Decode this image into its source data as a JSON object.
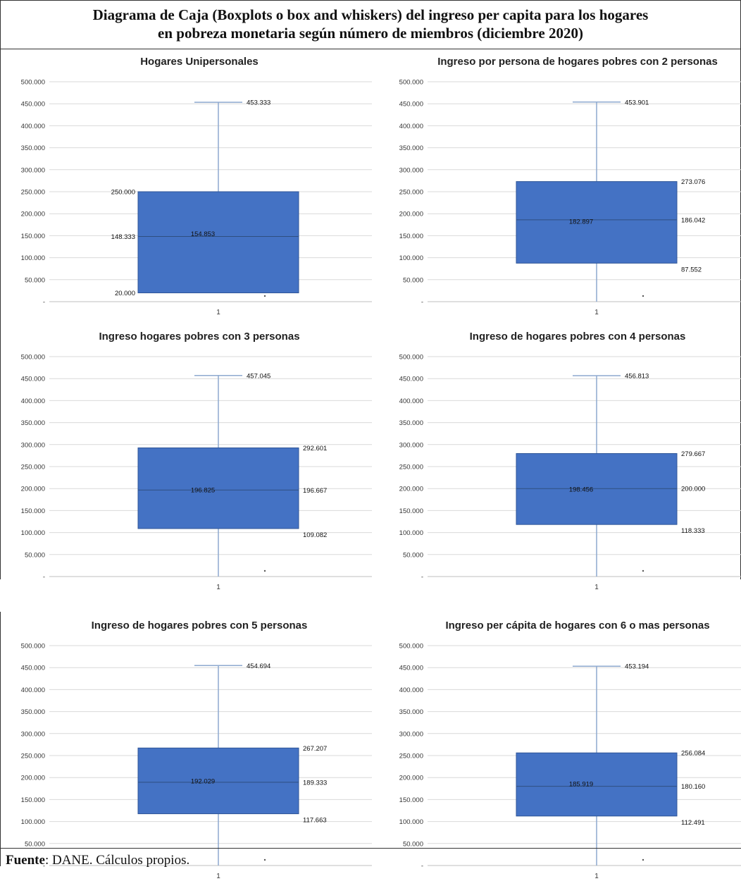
{
  "figure": {
    "title_line1": "Diagrama de Caja (Boxplots o box and whiskers) del ingreso per capita para los hogares",
    "title_line2": "en pobreza monetaria según número de miembros (diciembre 2020)",
    "source_label": "Fuente",
    "source_text": ": DANE. Cálculos propios."
  },
  "colors": {
    "box": "#4472c4",
    "whisker": "#8ea9cf",
    "grid": "#d9d9d9"
  },
  "chart_data": [
    {
      "type": "box",
      "title": "Hogares Unipersonales",
      "category": "1",
      "ylim": [
        0,
        500000
      ],
      "yticks": [
        "-",
        "50.000",
        "100.000",
        "150.000",
        "200.000",
        "250.000",
        "300.000",
        "350.000",
        "400.000",
        "450.000",
        "500.000"
      ],
      "min": 20000,
      "q1": 20000,
      "median": 148333,
      "mean": 154853,
      "q3": 250000,
      "max": 453333,
      "labels": {
        "max": "453.333",
        "q3": "250.000",
        "median": "148.333",
        "mean": "154.853",
        "q1": "20.000"
      },
      "label_side": "left"
    },
    {
      "type": "box",
      "title": "Ingreso por persona de hogares pobres con 2 personas",
      "category": "1",
      "ylim": [
        0,
        500000
      ],
      "yticks": [
        "-",
        "50.000",
        "100.000",
        "150.000",
        "200.000",
        "250.000",
        "300.000",
        "350.000",
        "400.000",
        "450.000",
        "500.000"
      ],
      "min": 0,
      "q1": 87552,
      "median": 186042,
      "mean": 182897,
      "q3": 273076,
      "max": 453901,
      "labels": {
        "max": "453.901",
        "q3": "273.076",
        "median": "186.042",
        "mean": "182.897",
        "q1": "87.552"
      },
      "label_side": "right"
    },
    {
      "type": "box",
      "title": "Ingreso hogares pobres con 3 personas",
      "category": "1",
      "ylim": [
        0,
        500000
      ],
      "yticks": [
        "-",
        "50.000",
        "100.000",
        "150.000",
        "200.000",
        "250.000",
        "300.000",
        "350.000",
        "400.000",
        "450.000",
        "500.000"
      ],
      "min": 0,
      "q1": 109082,
      "median": 196667,
      "mean": 196825,
      "q3": 292601,
      "max": 457045,
      "labels": {
        "max": "457.045",
        "q3": "292.601",
        "median": "196.667",
        "mean": "196.825",
        "q1": "109.082"
      },
      "label_side": "right"
    },
    {
      "type": "box",
      "title": "Ingreso de hogares pobres con 4 personas",
      "category": "1",
      "ylim": [
        0,
        500000
      ],
      "yticks": [
        "-",
        "50.000",
        "100.000",
        "150.000",
        "200.000",
        "250.000",
        "300.000",
        "350.000",
        "400.000",
        "450.000",
        "500.000"
      ],
      "min": 0,
      "q1": 118333,
      "median": 200000,
      "mean": 198456,
      "q3": 279667,
      "max": 456813,
      "labels": {
        "max": "456.813",
        "q3": "279.667",
        "median": "200.000",
        "mean": "198.456",
        "q1": "118.333"
      },
      "label_side": "right"
    },
    {
      "type": "box",
      "title": "Ingreso de hogares pobres con 5 personas",
      "category": "1",
      "ylim": [
        0,
        500000
      ],
      "yticks": [
        "-",
        "50.000",
        "100.000",
        "150.000",
        "200.000",
        "250.000",
        "300.000",
        "350.000",
        "400.000",
        "450.000",
        "500.000"
      ],
      "min": 0,
      "q1": 117663,
      "median": 189333,
      "mean": 192029,
      "q3": 267207,
      "max": 454694,
      "labels": {
        "max": "454.694",
        "q3": "267.207",
        "median": "189.333",
        "mean": "192.029",
        "q1": "117.663"
      },
      "label_side": "right"
    },
    {
      "type": "box",
      "title": "Ingreso per cápita de hogares con 6 o mas personas",
      "category": "1",
      "ylim": [
        0,
        500000
      ],
      "yticks": [
        "-",
        "50.000",
        "100.000",
        "150.000",
        "200.000",
        "250.000",
        "300.000",
        "350.000",
        "400.000",
        "450.000",
        "500.000"
      ],
      "min": 0,
      "q1": 112491,
      "median": 180160,
      "mean": 185919,
      "q3": 256084,
      "max": 453194,
      "labels": {
        "max": "453.194",
        "q3": "256.084",
        "median": "180.160",
        "mean": "185.919",
        "q1": "112.491"
      },
      "label_side": "right"
    }
  ]
}
